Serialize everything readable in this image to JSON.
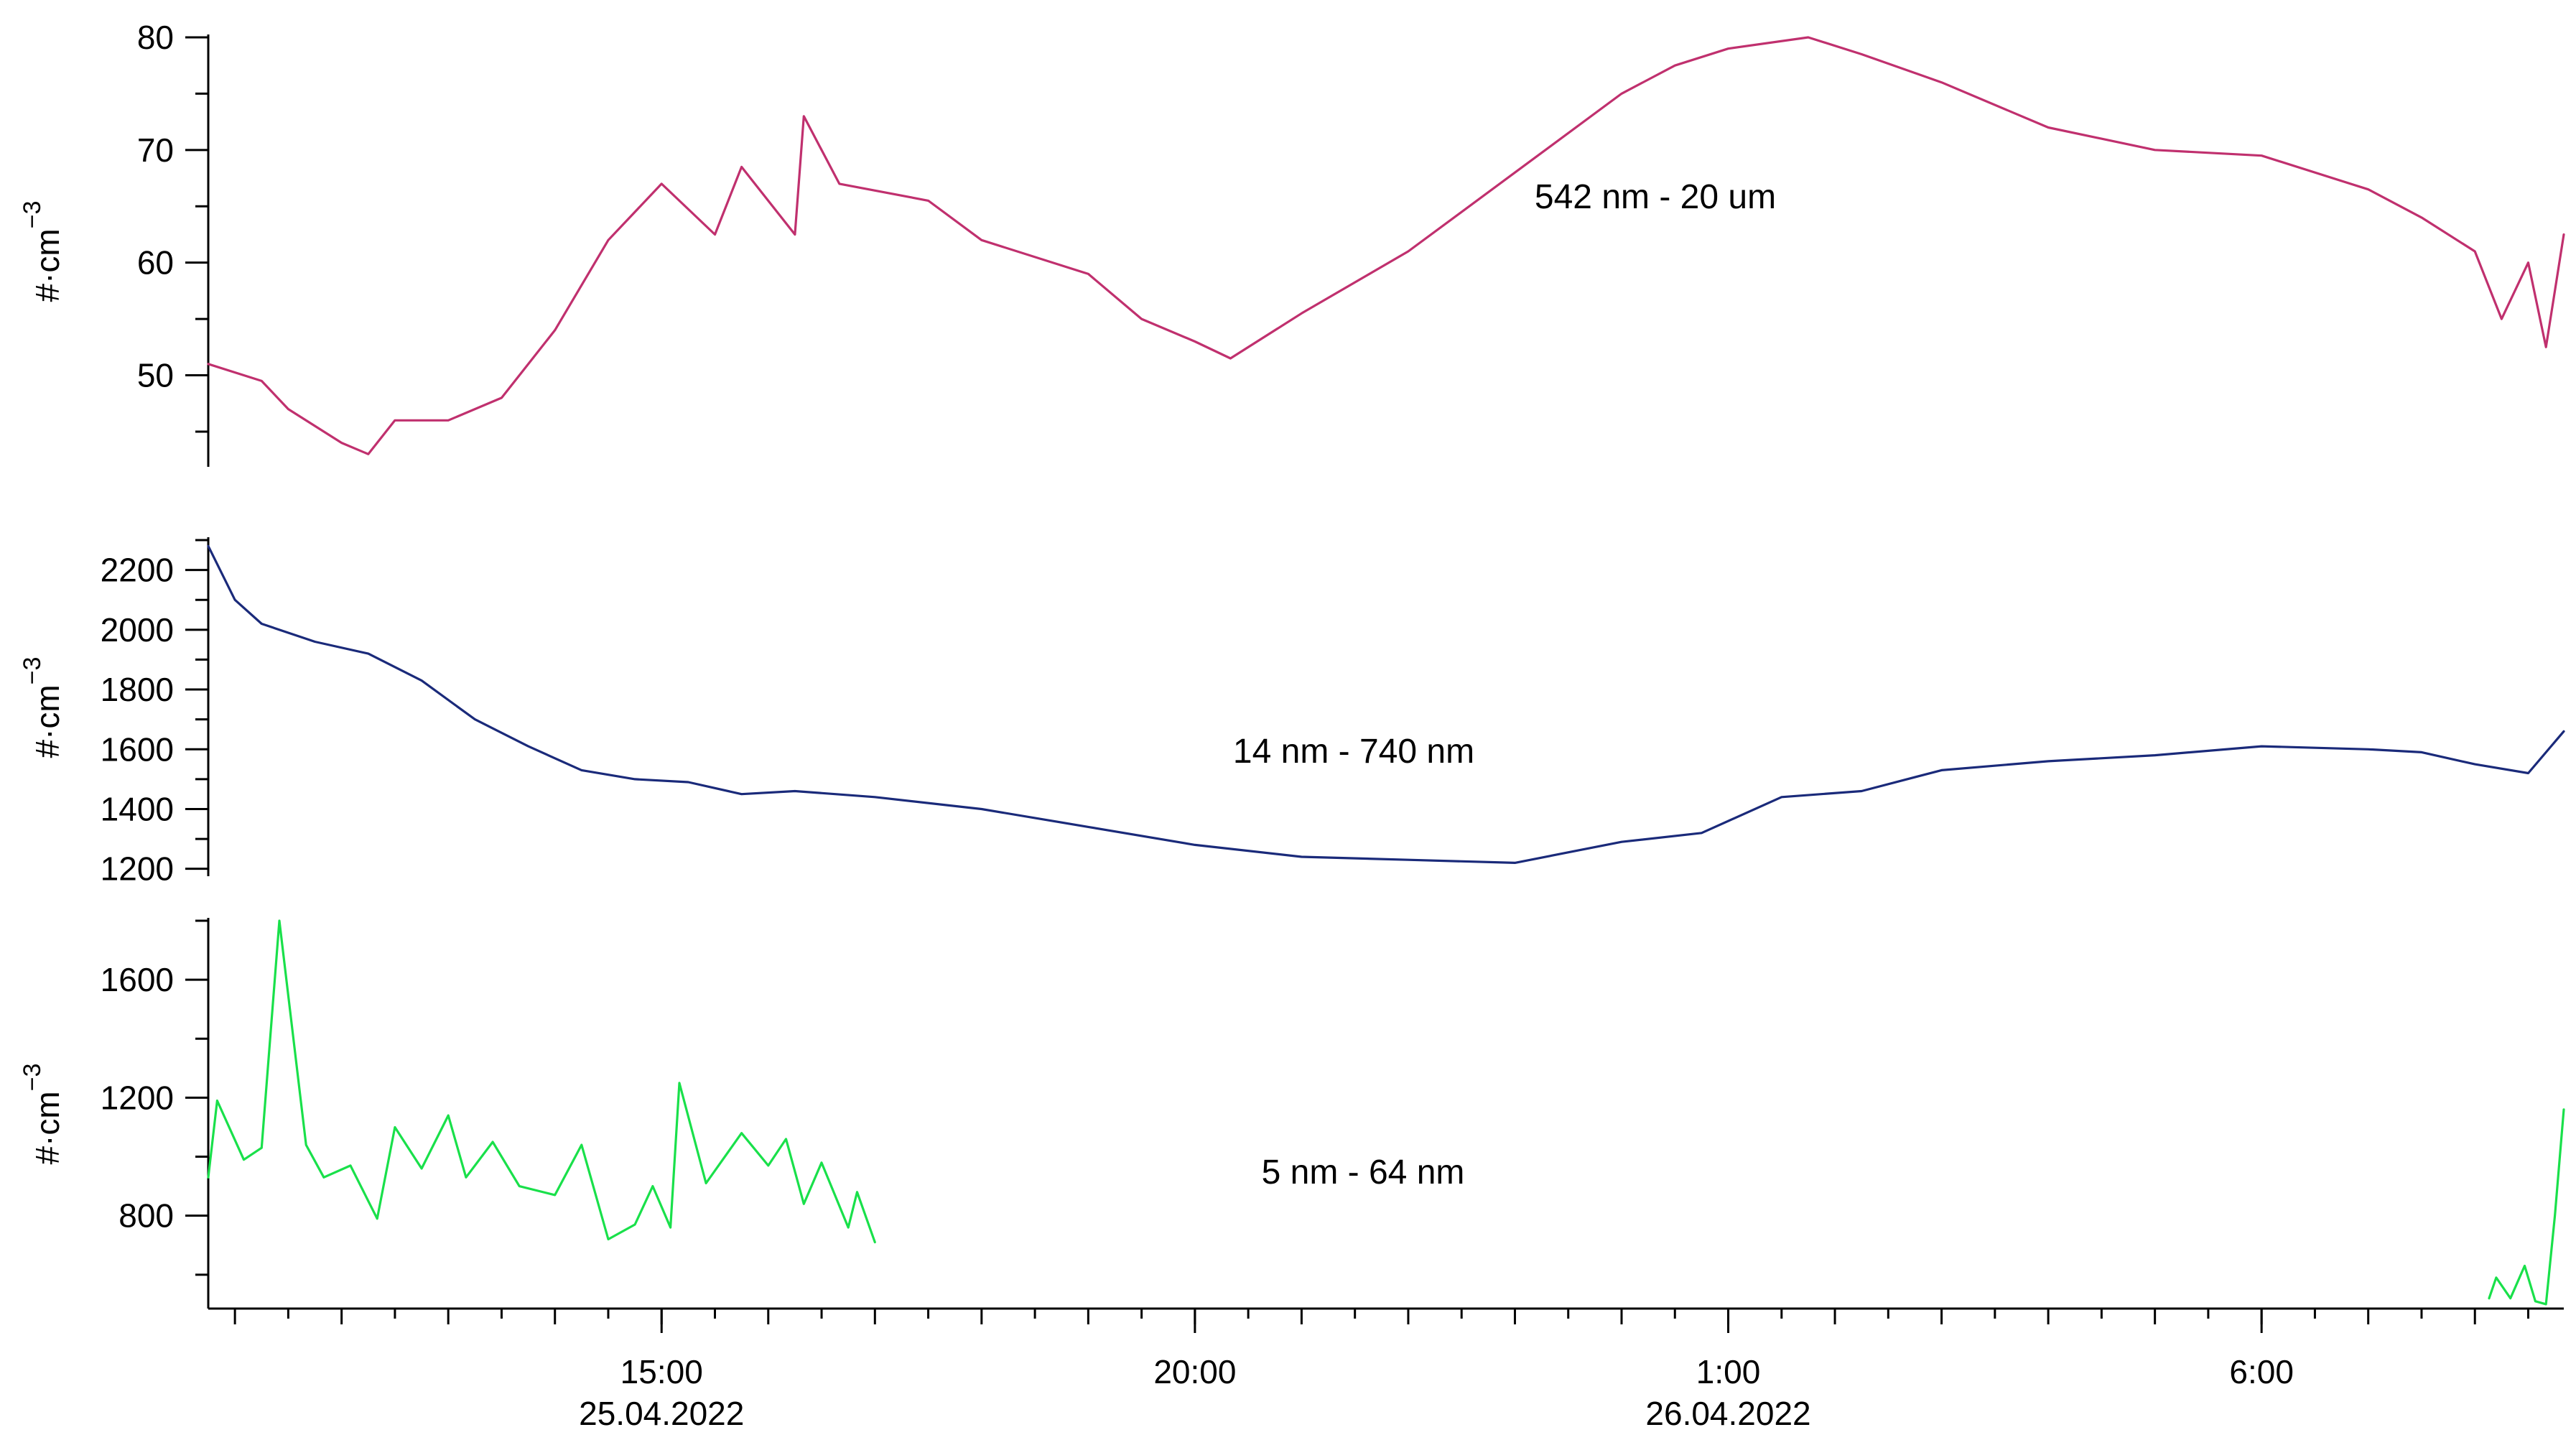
{
  "chart_data": {
    "type": "line",
    "layout": "stacked-panels",
    "x_axis": {
      "range": [
        "2022-04-25T10:45",
        "2022-04-26T08:50"
      ],
      "major_ticks": [
        {
          "time": "2022-04-25T15:00",
          "label": "15:00",
          "sublabel": "25.04.2022"
        },
        {
          "time": "2022-04-25T20:00",
          "label": "20:00",
          "sublabel": ""
        },
        {
          "time": "2022-04-26T01:00",
          "label": "1:00",
          "sublabel": "26.04.2022"
        },
        {
          "time": "2022-04-26T06:00",
          "label": "6:00",
          "sublabel": ""
        }
      ],
      "minor_tick_interval_minutes": 30
    },
    "panels": [
      {
        "ylabel": "#·cm",
        "ylabel_superscript": "−3",
        "ylim": [
          42,
          80
        ],
        "yticks": [
          50,
          60,
          70,
          80
        ],
        "series": [
          {
            "name": "542 nm - 20 um",
            "color": "#c0306e",
            "points": [
              [
                "2022-04-25T10:45",
                51
              ],
              [
                "2022-04-25T11:15",
                49.5
              ],
              [
                "2022-04-25T11:30",
                47
              ],
              [
                "2022-04-25T12:00",
                44
              ],
              [
                "2022-04-25T12:15",
                43
              ],
              [
                "2022-04-25T12:30",
                46
              ],
              [
                "2022-04-25T13:00",
                46
              ],
              [
                "2022-04-25T13:30",
                48
              ],
              [
                "2022-04-25T14:00",
                54
              ],
              [
                "2022-04-25T14:30",
                62
              ],
              [
                "2022-04-25T15:00",
                67
              ],
              [
                "2022-04-25T15:30",
                62.5
              ],
              [
                "2022-04-25T15:45",
                68.5
              ],
              [
                "2022-04-25T16:15",
                62.5
              ],
              [
                "2022-04-25T16:20",
                73
              ],
              [
                "2022-04-25T16:40",
                67
              ],
              [
                "2022-04-25T17:30",
                65.5
              ],
              [
                "2022-04-25T18:00",
                62
              ],
              [
                "2022-04-25T19:00",
                59
              ],
              [
                "2022-04-25T19:30",
                55
              ],
              [
                "2022-04-25T20:00",
                53
              ],
              [
                "2022-04-25T20:20",
                51.5
              ],
              [
                "2022-04-25T21:00",
                55.5
              ],
              [
                "2022-04-25T22:00",
                61
              ],
              [
                "2022-04-25T23:00",
                68
              ],
              [
                "2022-04-26T00:00",
                75
              ],
              [
                "2022-04-26T00:30",
                77.5
              ],
              [
                "2022-04-26T01:00",
                79
              ],
              [
                "2022-04-26T01:45",
                80
              ],
              [
                "2022-04-26T02:15",
                78.5
              ],
              [
                "2022-04-26T03:00",
                76
              ],
              [
                "2022-04-26T04:00",
                72
              ],
              [
                "2022-04-26T05:00",
                70
              ],
              [
                "2022-04-26T06:00",
                69.5
              ],
              [
                "2022-04-26T07:00",
                66.5
              ],
              [
                "2022-04-26T07:30",
                64
              ],
              [
                "2022-04-26T08:00",
                61
              ],
              [
                "2022-04-26T08:15",
                55
              ],
              [
                "2022-04-26T08:30",
                60
              ],
              [
                "2022-04-26T08:40",
                52.5
              ],
              [
                "2022-04-26T08:50",
                62.5
              ]
            ]
          }
        ]
      },
      {
        "ylabel": "#·cm",
        "ylabel_superscript": "−3",
        "ylim": [
          1180,
          2300
        ],
        "yticks": [
          1200,
          1400,
          1600,
          1800,
          2000,
          2200
        ],
        "series": [
          {
            "name": "14 nm - 740 nm",
            "color": "#1a2a7a",
            "points": [
              [
                "2022-04-25T10:45",
                2280
              ],
              [
                "2022-04-25T11:00",
                2100
              ],
              [
                "2022-04-25T11:15",
                2020
              ],
              [
                "2022-04-25T11:45",
                1960
              ],
              [
                "2022-04-25T12:15",
                1920
              ],
              [
                "2022-04-25T12:45",
                1830
              ],
              [
                "2022-04-25T13:15",
                1700
              ],
              [
                "2022-04-25T13:45",
                1610
              ],
              [
                "2022-04-25T14:15",
                1530
              ],
              [
                "2022-04-25T14:45",
                1500
              ],
              [
                "2022-04-25T15:15",
                1490
              ],
              [
                "2022-04-25T15:45",
                1450
              ],
              [
                "2022-04-25T16:15",
                1460
              ],
              [
                "2022-04-25T17:00",
                1440
              ],
              [
                "2022-04-25T18:00",
                1400
              ],
              [
                "2022-04-25T19:00",
                1340
              ],
              [
                "2022-04-25T20:00",
                1280
              ],
              [
                "2022-04-25T21:00",
                1240
              ],
              [
                "2022-04-25T22:00",
                1230
              ],
              [
                "2022-04-25T23:00",
                1220
              ],
              [
                "2022-04-26T00:00",
                1290
              ],
              [
                "2022-04-26T00:45",
                1320
              ],
              [
                "2022-04-26T01:30",
                1440
              ],
              [
                "2022-04-26T02:15",
                1460
              ],
              [
                "2022-04-26T03:00",
                1530
              ],
              [
                "2022-04-26T04:00",
                1560
              ],
              [
                "2022-04-26T05:00",
                1580
              ],
              [
                "2022-04-26T06:00",
                1610
              ],
              [
                "2022-04-26T07:00",
                1600
              ],
              [
                "2022-04-26T07:30",
                1590
              ],
              [
                "2022-04-26T08:00",
                1550
              ],
              [
                "2022-04-26T08:30",
                1520
              ],
              [
                "2022-04-26T08:50",
                1660
              ]
            ]
          }
        ]
      },
      {
        "ylabel": "#·cm",
        "ylabel_superscript": "−3",
        "ylim": [
          490,
          1800
        ],
        "yticks": [
          800,
          1200,
          1600
        ],
        "series": [
          {
            "name": "5 nm - 64 nm",
            "color": "#19e04a",
            "points": [
              [
                "2022-04-25T10:45",
                930
              ],
              [
                "2022-04-25T10:50",
                1190
              ],
              [
                "2022-04-25T11:05",
                990
              ],
              [
                "2022-04-25T11:15",
                1030
              ],
              [
                "2022-04-25T11:25",
                1800
              ],
              [
                "2022-04-25T11:40",
                1040
              ],
              [
                "2022-04-25T11:50",
                930
              ],
              [
                "2022-04-25T12:05",
                970
              ],
              [
                "2022-04-25T12:20",
                790
              ],
              [
                "2022-04-25T12:30",
                1100
              ],
              [
                "2022-04-25T12:45",
                960
              ],
              [
                "2022-04-25T13:00",
                1140
              ],
              [
                "2022-04-25T13:10",
                930
              ],
              [
                "2022-04-25T13:25",
                1050
              ],
              [
                "2022-04-25T13:40",
                900
              ],
              [
                "2022-04-25T14:00",
                870
              ],
              [
                "2022-04-25T14:15",
                1040
              ],
              [
                "2022-04-25T14:30",
                720
              ],
              [
                "2022-04-25T14:45",
                770
              ],
              [
                "2022-04-25T14:55",
                900
              ],
              [
                "2022-04-25T15:05",
                760
              ],
              [
                "2022-04-25T15:10",
                1250
              ],
              [
                "2022-04-25T15:25",
                910
              ],
              [
                "2022-04-25T15:45",
                1080
              ],
              [
                "2022-04-25T16:00",
                970
              ],
              [
                "2022-04-25T16:10",
                1060
              ],
              [
                "2022-04-25T16:20",
                840
              ],
              [
                "2022-04-25T16:30",
                980
              ],
              [
                "2022-04-25T16:45",
                760
              ],
              [
                "2022-04-25T16:50",
                880
              ],
              [
                "2022-04-25T17:00",
                710
              ]
            ]
          },
          {
            "name": "",
            "color": "#19e04a",
            "points": [
              [
                "2022-04-26T08:08",
                520
              ],
              [
                "2022-04-26T08:12",
                590
              ],
              [
                "2022-04-26T08:20",
                520
              ],
              [
                "2022-04-26T08:28",
                630
              ],
              [
                "2022-04-26T08:34",
                510
              ],
              [
                "2022-04-26T08:40",
                500
              ],
              [
                "2022-04-26T08:45",
                800
              ],
              [
                "2022-04-26T08:50",
                1160
              ]
            ]
          }
        ]
      }
    ]
  }
}
